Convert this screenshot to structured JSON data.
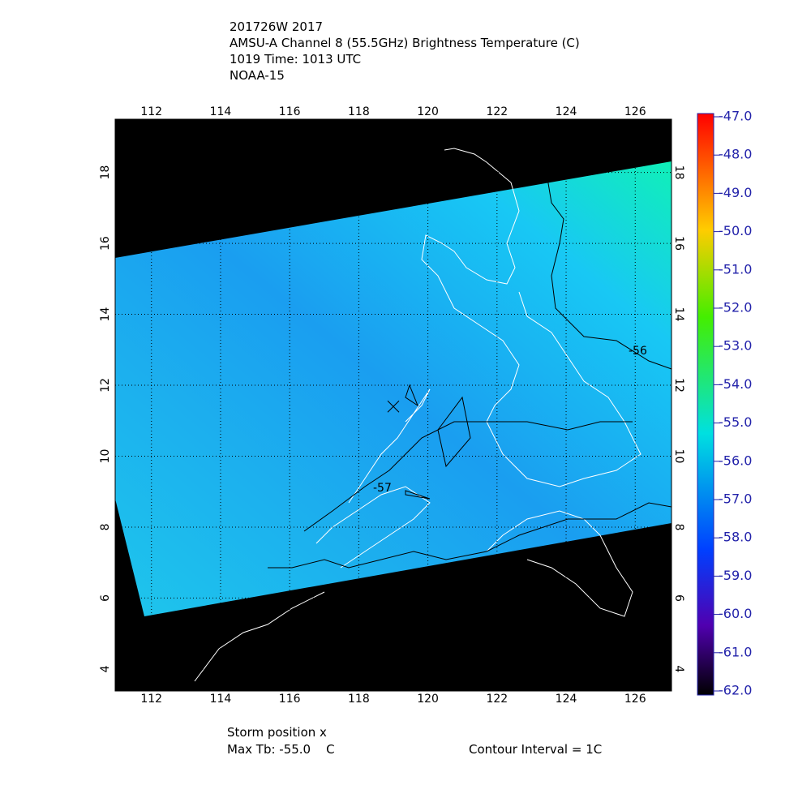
{
  "header": {
    "lines": [
      "201726W 2017",
      "AMSU-A Channel 8 (55.5GHz) Brightness Temperature (C)",
      "1019 Time: 1013 UTC",
      "NOAA-15"
    ]
  },
  "map": {
    "type": "map",
    "xlim": [
      110.95,
      127.05
    ],
    "ylim": [
      3.38,
      19.5
    ],
    "xticks": [
      112,
      114,
      116,
      118,
      120,
      122,
      124,
      126
    ],
    "yticks": [
      4,
      6,
      8,
      10,
      12,
      14,
      16,
      18
    ],
    "grid": true,
    "storm": {
      "lon": 119.0,
      "lat": 11.4
    },
    "contour_labels": [
      "-56",
      "-57"
    ]
  },
  "colorbar": {
    "lim": [
      -62,
      -47
    ],
    "ticks": [
      {
        "value": -47,
        "label": "-47.0"
      },
      {
        "value": -48,
        "label": "-48.0"
      },
      {
        "value": -49,
        "label": "-49.0"
      },
      {
        "value": -50,
        "label": "-50.0"
      },
      {
        "value": -51,
        "label": "-51.0"
      },
      {
        "value": -52,
        "label": "-52.0"
      },
      {
        "value": -53,
        "label": "-53.0"
      },
      {
        "value": -54,
        "label": "-54.0"
      },
      {
        "value": -55,
        "label": "-55.0"
      },
      {
        "value": -56,
        "label": "-56.0"
      },
      {
        "value": -57,
        "label": "-57.0"
      },
      {
        "value": -58,
        "label": "-58.0"
      },
      {
        "value": -59,
        "label": "-59.0"
      },
      {
        "value": -60,
        "label": "-60.0"
      },
      {
        "value": -61,
        "label": "-61.0"
      },
      {
        "value": -62,
        "label": "-62.0"
      }
    ]
  },
  "footer": {
    "storm": "Storm position x",
    "max_tb": "Max Tb: -55.0    C",
    "contour": "Contour Interval = 1C"
  }
}
